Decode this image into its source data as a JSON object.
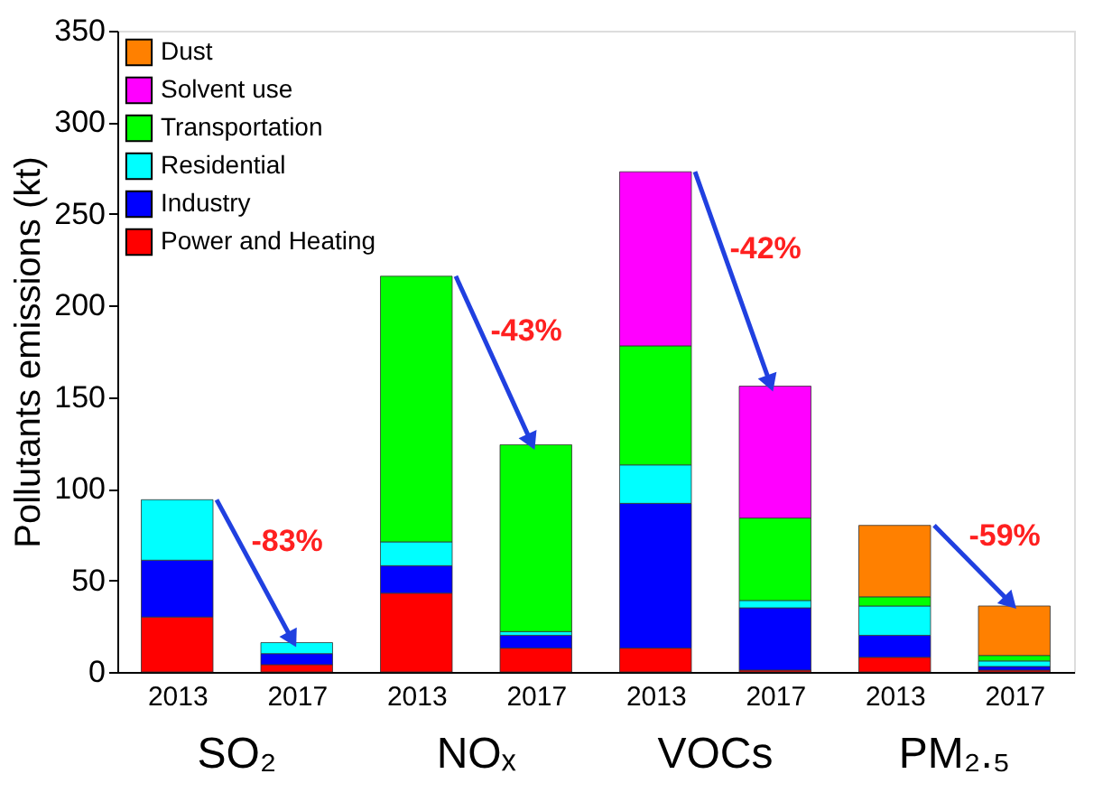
{
  "chart_data": {
    "type": "bar",
    "stacked": true,
    "ylabel": "Pollutants emissions (kt)",
    "categories": [
      "2013",
      "2017",
      "2013",
      "2017",
      "2013",
      "2017",
      "2013",
      "2017"
    ],
    "series": [
      {
        "name": "Power and Heating",
        "color": "#ff0000",
        "values": [
          30,
          4,
          43,
          13,
          13,
          1,
          8,
          1
        ]
      },
      {
        "name": "Industry",
        "color": "#0000ff",
        "values": [
          31,
          6,
          15,
          7,
          79,
          34,
          12,
          2
        ]
      },
      {
        "name": "Residential",
        "color": "#00ffff",
        "values": [
          33,
          6,
          13,
          2,
          21,
          4,
          16,
          3
        ]
      },
      {
        "name": "Transportation",
        "color": "#00ff00",
        "values": [
          null,
          null,
          145,
          102,
          65,
          45,
          5,
          3
        ]
      },
      {
        "name": "Solvent use",
        "color": "#ff00ff",
        "values": [
          null,
          null,
          null,
          null,
          95,
          72,
          null,
          null
        ]
      },
      {
        "name": "Dust",
        "color": "#ff8000",
        "values": [
          null,
          null,
          null,
          null,
          null,
          null,
          39,
          27
        ]
      }
    ],
    "ylim": [
      0,
      350
    ],
    "yticks": [
      0,
      50,
      100,
      150,
      200,
      250,
      300,
      350
    ],
    "grid": false,
    "legend": "top left",
    "annotations": [
      "SO₂",
      "NOₓ",
      "VOCs",
      "PM₂.₅",
      "-83%",
      "-43%",
      "-42%",
      {
        "text": "-59%",
        "y": 36
      }
    ]
  }
}
